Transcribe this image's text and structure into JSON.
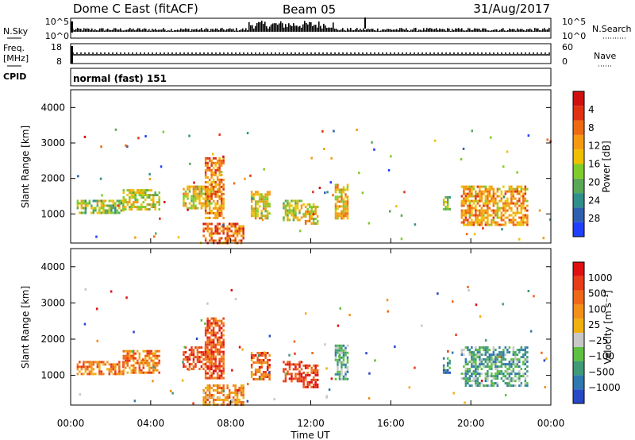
{
  "header": {
    "title_left": "Dome C East (fitACF)",
    "title_center": "Beam 05",
    "title_right": "31/Aug/2017"
  },
  "top_panels": {
    "nsky": {
      "label": "N.Sky",
      "right_label": "N.Search",
      "tick_labels_left": [
        "10^5",
        "10^0"
      ],
      "tick_labels_right": [
        "10^5",
        "10^0"
      ]
    },
    "freq": {
      "label_line1": "Freq.",
      "label_line2": "[MHz]",
      "right_label": "Nave",
      "tick_labels_left": [
        "18",
        "8"
      ],
      "tick_labels_right": [
        "60",
        "0"
      ]
    },
    "cpid": {
      "label": "CPID",
      "value": "normal (fast) 151"
    }
  },
  "x_axis": {
    "label": "Time UT",
    "tick_labels": [
      "00:00",
      "04:00",
      "08:00",
      "12:00",
      "16:00",
      "20:00",
      "00:00"
    ]
  },
  "chart_data": [
    {
      "type": "heatmap",
      "name": "power",
      "ylabel": "Slant Range [km]",
      "y_ticks": [
        1000,
        2000,
        3000,
        4000
      ],
      "ylim": [
        180,
        4500
      ],
      "xlim_hours": [
        0,
        24
      ],
      "colorbar": {
        "label": "Power [dB]",
        "tick_labels": [
          "4",
          "8",
          "12",
          "16",
          "20",
          "24",
          "28"
        ],
        "colors": [
          "#2040ff",
          "#2f5fb0",
          "#2f8f8a",
          "#5aa855",
          "#7fcc2a",
          "#f0c000",
          "#f59a10",
          "#ee6a12",
          "#e03212",
          "#d01010"
        ]
      },
      "regions": [
        {
          "t": [
            0.3,
            2.6
          ],
          "r": [
            1050,
            1400
          ],
          "level": 0.45
        },
        {
          "t": [
            2.6,
            4.4
          ],
          "r": [
            1100,
            1700
          ],
          "level": 0.5
        },
        {
          "t": [
            5.6,
            7.0
          ],
          "r": [
            1150,
            1800
          ],
          "level": 0.55
        },
        {
          "t": [
            6.7,
            7.6
          ],
          "r": [
            900,
            2600
          ],
          "level": 0.7
        },
        {
          "t": [
            6.6,
            8.6
          ],
          "r": [
            200,
            750
          ],
          "level": 0.75
        },
        {
          "t": [
            9.0,
            9.9
          ],
          "r": [
            900,
            1650
          ],
          "level": 0.55
        },
        {
          "t": [
            10.6,
            11.5
          ],
          "r": [
            850,
            1400
          ],
          "level": 0.5
        },
        {
          "t": [
            11.6,
            12.3
          ],
          "r": [
            700,
            1300
          ],
          "level": 0.55
        },
        {
          "t": [
            13.2,
            13.8
          ],
          "r": [
            900,
            1850
          ],
          "level": 0.6
        },
        {
          "t": [
            18.6,
            18.9
          ],
          "r": [
            1100,
            1500
          ],
          "level": 0.45
        },
        {
          "t": [
            19.5,
            22.8
          ],
          "r": [
            700,
            1800
          ],
          "level": 0.65
        }
      ]
    },
    {
      "type": "heatmap",
      "name": "velocity",
      "ylabel": "Slant Range [km]",
      "y_ticks": [
        1000,
        2000,
        3000,
        4000
      ],
      "ylim": [
        180,
        4500
      ],
      "xlim_hours": [
        0,
        24
      ],
      "colorbar": {
        "label": "Velocity [m s⁻¹]",
        "tick_labels": [
          "1000",
          "500",
          "100",
          "25",
          "−25",
          "−100",
          "−500",
          "−1000"
        ],
        "colors": [
          "#2848c8",
          "#2f78b0",
          "#3f9a78",
          "#5ec040",
          "#c8c8c8",
          "#f0b010",
          "#f39018",
          "#ef6818",
          "#e83c18",
          "#e01010"
        ]
      },
      "regions": [
        {
          "t": [
            0.3,
            2.6
          ],
          "r": [
            1050,
            1400
          ],
          "level": 0.72
        },
        {
          "t": [
            2.6,
            4.4
          ],
          "r": [
            1100,
            1700
          ],
          "level": 0.7
        },
        {
          "t": [
            5.6,
            7.0
          ],
          "r": [
            1150,
            1800
          ],
          "level": 0.82
        },
        {
          "t": [
            6.7,
            7.6
          ],
          "r": [
            900,
            2600
          ],
          "level": 0.8
        },
        {
          "t": [
            6.6,
            8.6
          ],
          "r": [
            200,
            750
          ],
          "level": 0.65
        },
        {
          "t": [
            9.0,
            9.9
          ],
          "r": [
            900,
            1650
          ],
          "level": 0.75
        },
        {
          "t": [
            10.6,
            11.5
          ],
          "r": [
            850,
            1400
          ],
          "level": 0.88
        },
        {
          "t": [
            11.6,
            12.3
          ],
          "r": [
            700,
            1300
          ],
          "level": 0.85
        },
        {
          "t": [
            13.2,
            13.8
          ],
          "r": [
            900,
            1850
          ],
          "level": 0.3
        },
        {
          "t": [
            18.6,
            18.9
          ],
          "r": [
            1100,
            1500
          ],
          "level": 0.2
        },
        {
          "t": [
            19.5,
            22.8
          ],
          "r": [
            700,
            1800
          ],
          "level": 0.3
        }
      ]
    }
  ]
}
